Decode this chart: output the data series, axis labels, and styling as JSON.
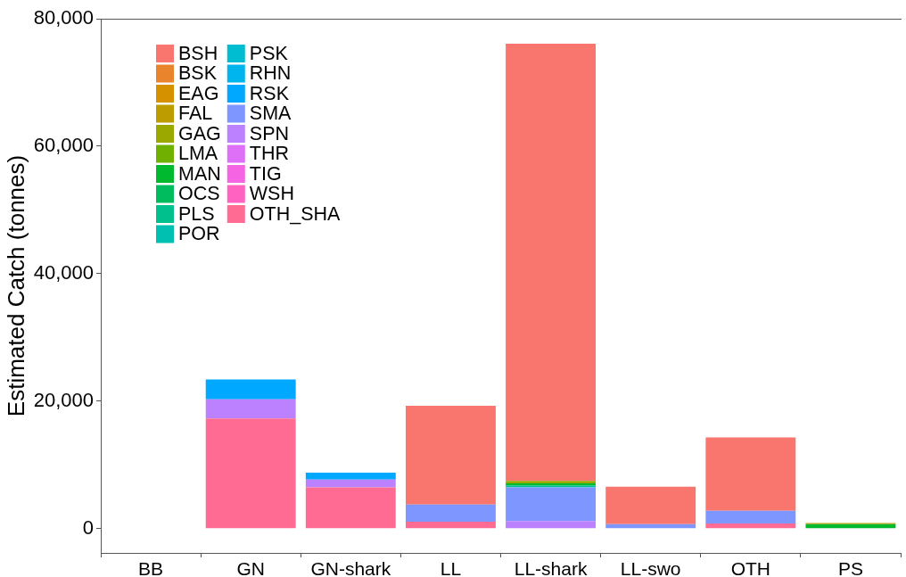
{
  "chart_data": {
    "type": "bar",
    "ylabel": "Estimated Catch (tonnes)",
    "categories": [
      "BB",
      "GN",
      "GN-shark",
      "LL",
      "LL-shark",
      "LL-swo",
      "OTH",
      "PS"
    ],
    "stacked": true,
    "legend": "top left",
    "ylim": [
      -3800,
      80000
    ],
    "yticks": [
      0,
      {
        "value": 20000,
        "label": "20,000"
      },
      {
        "value": 40000,
        "label": "40,000"
      },
      {
        "value": 60000,
        "label": "60,000"
      },
      {
        "value": 80000,
        "label": "80,000"
      }
    ],
    "series": [
      {
        "name": "OTH_SHA",
        "color": "#ff6b93",
        "values": [
          null,
          17300,
          6500,
          1100,
          null,
          null,
          800,
          null
        ]
      },
      {
        "name": "WSH",
        "color": "#ff62c0",
        "values": [
          null,
          null,
          null,
          null,
          null,
          null,
          null,
          null
        ]
      },
      {
        "name": "TIG",
        "color": "#f564e3",
        "values": [
          null,
          null,
          null,
          null,
          null,
          null,
          null,
          null
        ]
      },
      {
        "name": "THR",
        "color": "#de70f8",
        "values": [
          null,
          null,
          null,
          null,
          null,
          null,
          null,
          null
        ]
      },
      {
        "name": "SPN",
        "color": "#bb81ff",
        "values": [
          null,
          3000,
          1200,
          null,
          1200,
          null,
          null,
          null
        ]
      },
      {
        "name": "SMA",
        "color": "#7e96ff",
        "values": [
          null,
          null,
          null,
          2700,
          5300,
          700,
          2000,
          null
        ]
      },
      {
        "name": "RSK",
        "color": "#00a8ff",
        "values": [
          null,
          3100,
          1100,
          null,
          null,
          null,
          null,
          null
        ]
      },
      {
        "name": "RHN",
        "color": "#00b4ee",
        "values": [
          null,
          null,
          null,
          null,
          null,
          null,
          null,
          null
        ]
      },
      {
        "name": "PSK",
        "color": "#00bdd1",
        "values": [
          null,
          null,
          null,
          null,
          null,
          null,
          null,
          null
        ]
      },
      {
        "name": "POR",
        "color": "#00c0b2",
        "values": [
          null,
          null,
          null,
          null,
          null,
          null,
          null,
          null
        ]
      },
      {
        "name": "PLS",
        "color": "#00c08d",
        "values": [
          null,
          null,
          null,
          null,
          300,
          null,
          null,
          null
        ]
      },
      {
        "name": "OCS",
        "color": "#00bc5e",
        "values": [
          null,
          null,
          null,
          null,
          null,
          null,
          null,
          null
        ]
      },
      {
        "name": "MAN",
        "color": "#00b92e",
        "values": [
          null,
          null,
          null,
          null,
          300,
          null,
          null,
          700
        ]
      },
      {
        "name": "LMA",
        "color": "#6fb000",
        "values": [
          null,
          null,
          null,
          null,
          null,
          null,
          null,
          null
        ]
      },
      {
        "name": "GAG",
        "color": "#9aa800",
        "values": [
          null,
          null,
          null,
          null,
          400,
          null,
          null,
          null
        ]
      },
      {
        "name": "FAL",
        "color": "#bd9c00",
        "values": [
          null,
          null,
          null,
          null,
          null,
          null,
          null,
          200
        ]
      },
      {
        "name": "EAG",
        "color": "#d69100",
        "values": [
          null,
          null,
          null,
          null,
          null,
          null,
          null,
          null
        ]
      },
      {
        "name": "BSK",
        "color": "#e9842c",
        "values": [
          null,
          null,
          null,
          null,
          null,
          null,
          null,
          null
        ]
      },
      {
        "name": "BSH",
        "color": "#f8766d",
        "values": [
          null,
          null,
          null,
          15500,
          68600,
          5900,
          11500,
          null
        ]
      }
    ]
  }
}
